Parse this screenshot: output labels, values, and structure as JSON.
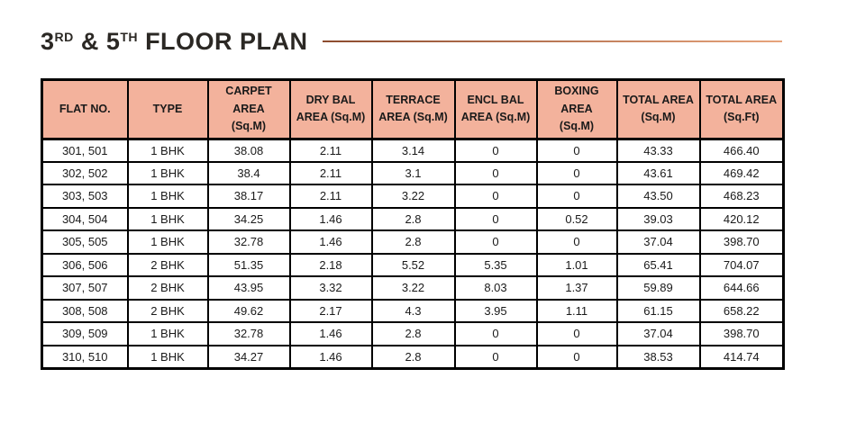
{
  "title": {
    "part1": "3",
    "sup1": "RD",
    "part2": " & 5",
    "sup2": "TH",
    "part3": " FLOOR PLAN"
  },
  "colors": {
    "header_bg": "#F3B29C",
    "table_border": "#000000",
    "title_text": "#2B2824",
    "rule_start": "#8C4B2E",
    "rule_end": "#E7A47C"
  },
  "table": {
    "headers": [
      {
        "line1": "FLAT NO.",
        "line2": ""
      },
      {
        "line1": "TYPE",
        "line2": ""
      },
      {
        "line1": "CARPET AREA",
        "line2": "(Sq.M)"
      },
      {
        "line1": "DRY BAL",
        "line2": "AREA (Sq.M)"
      },
      {
        "line1": "TERRACE",
        "line2": "AREA (Sq.M)"
      },
      {
        "line1": "ENCL BAL",
        "line2": "AREA (Sq.M)"
      },
      {
        "line1": "BOXING AREA",
        "line2": "(Sq.M)"
      },
      {
        "line1": "TOTAL AREA",
        "line2": "(Sq.M)"
      },
      {
        "line1": "TOTAL AREA",
        "line2": "(Sq.Ft)"
      }
    ],
    "rows": [
      [
        "301, 501",
        "1 BHK",
        "38.08",
        "2.11",
        "3.14",
        "0",
        "0",
        "43.33",
        "466.40"
      ],
      [
        "302, 502",
        "1 BHK",
        "38.4",
        "2.11",
        "3.1",
        "0",
        "0",
        "43.61",
        "469.42"
      ],
      [
        "303, 503",
        "1 BHK",
        "38.17",
        "2.11",
        "3.22",
        "0",
        "0",
        "43.50",
        "468.23"
      ],
      [
        "304, 504",
        "1 BHK",
        "34.25",
        "1.46",
        "2.8",
        "0",
        "0.52",
        "39.03",
        "420.12"
      ],
      [
        "305, 505",
        "1 BHK",
        "32.78",
        "1.46",
        "2.8",
        "0",
        "0",
        "37.04",
        "398.70"
      ],
      [
        "306, 506",
        "2 BHK",
        "51.35",
        "2.18",
        "5.52",
        "5.35",
        "1.01",
        "65.41",
        "704.07"
      ],
      [
        "307, 507",
        "2 BHK",
        "43.95",
        "3.32",
        "3.22",
        "8.03",
        "1.37",
        "59.89",
        "644.66"
      ],
      [
        "308, 508",
        "2 BHK",
        "49.62",
        "2.17",
        "4.3",
        "3.95",
        "1.11",
        "61.15",
        "658.22"
      ],
      [
        "309, 509",
        "1 BHK",
        "32.78",
        "1.46",
        "2.8",
        "0",
        "0",
        "37.04",
        "398.70"
      ],
      [
        "310, 510",
        "1 BHK",
        "34.27",
        "1.46",
        "2.8",
        "0",
        "0",
        "38.53",
        "414.74"
      ]
    ]
  }
}
